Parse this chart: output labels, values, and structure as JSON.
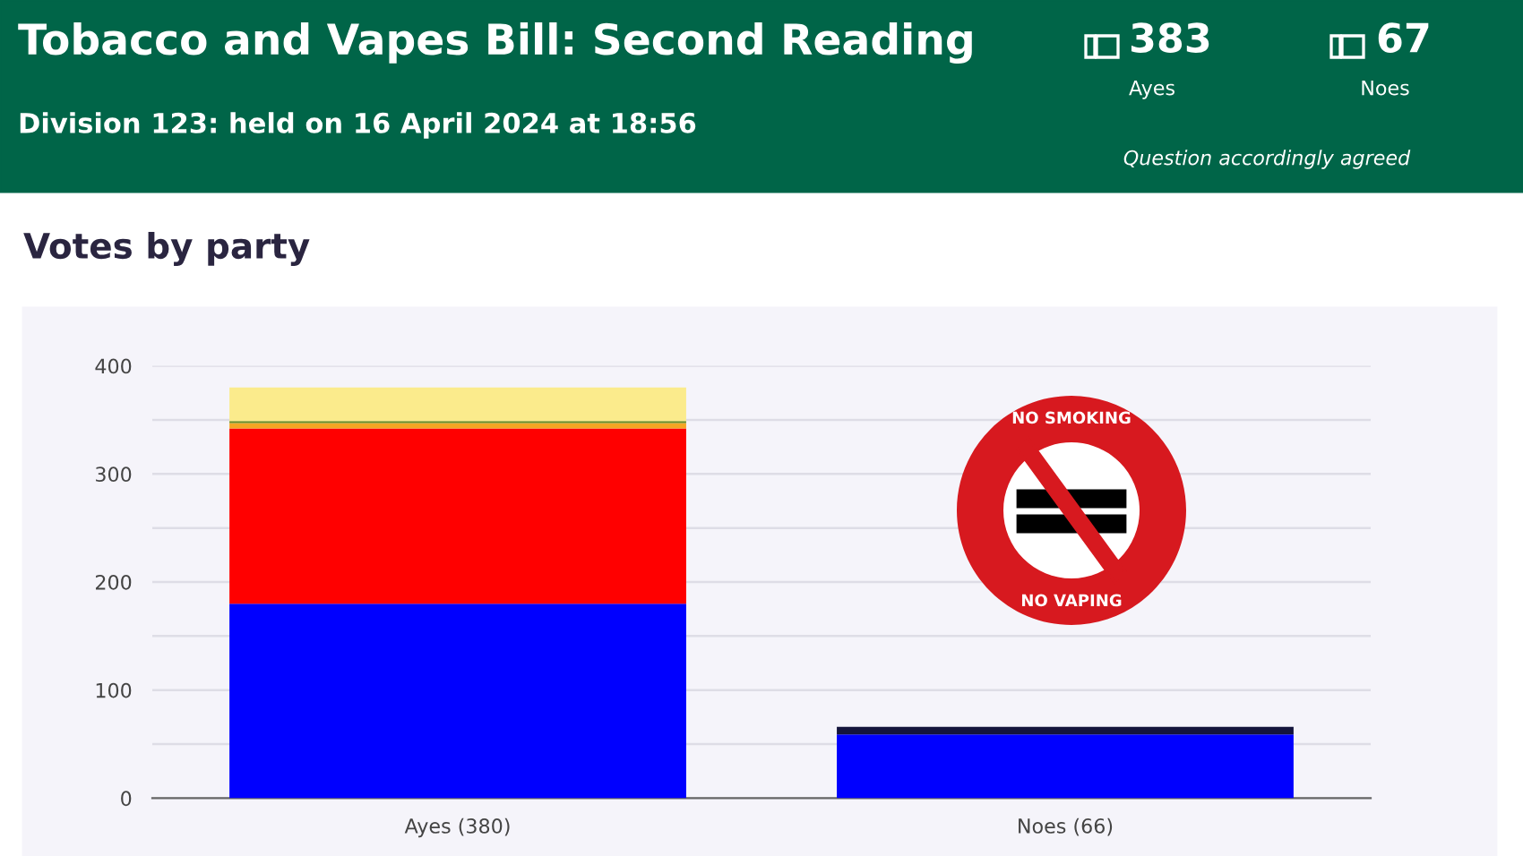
{
  "chart_data": {
    "type": "bar",
    "title": "Tobacco and Vapes Bill: Second Reading",
    "subtitle": "Division 123: held on 16 April 2024 at 18:56",
    "annotations": [
      "383",
      "Ayes",
      "67",
      "Noes",
      "Question accordingly agreed",
      "Votes by party",
      "NO SMOKING",
      "NO VAPING"
    ],
    "categories": [
      "Ayes (380)",
      "Noes (66)"
    ],
    "stacked": true,
    "series": [
      {
        "color": "#0000ff",
        "values": [
          180,
          59
        ]
      },
      {
        "color": "#ff0000",
        "values": [
          162,
          null
        ]
      },
      {
        "color": "#f5a623",
        "values": [
          5,
          null
        ]
      },
      {
        "color": "#6b8e23",
        "values": [
          2,
          null
        ]
      },
      {
        "color": "#fbeb8c",
        "values": [
          31,
          null
        ]
      },
      {
        "color": "#14143c",
        "values": [
          null,
          7
        ]
      }
    ],
    "ylim": [
      0,
      400
    ],
    "yticks": [
      0,
      {
        "value": 50,
        "label": null
      },
      100,
      {
        "value": 150,
        "label": null
      },
      200,
      {
        "value": 250,
        "label": null
      },
      300,
      {
        "value": 350,
        "label": null
      },
      400
    ],
    "grid": "y"
  }
}
